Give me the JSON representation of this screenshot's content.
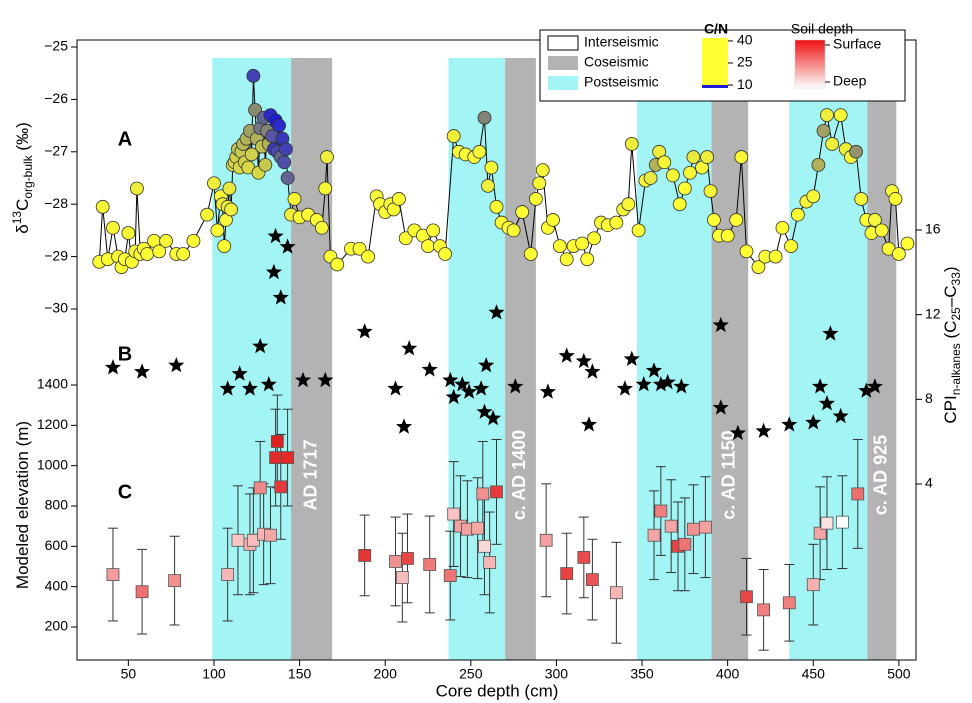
{
  "chart_data": {
    "type": "scatter",
    "xlabel": "Core depth (cm)",
    "xlim": [
      20,
      510
    ],
    "xticks": [
      50,
      100,
      150,
      200,
      250,
      300,
      350,
      400,
      450,
      500
    ],
    "periods": [
      {
        "name": "Interseismic",
        "color": "#ffffff"
      },
      {
        "name": "Coseismic",
        "color": "#b3b3b3",
        "ranges": [
          [
            145,
            169
          ],
          [
            270,
            288
          ],
          [
            390.5,
            412
          ],
          [
            481.5,
            498.5
          ]
        ],
        "labels": [
          "AD 1717",
          "c. AD 1400",
          "c. AD 1150",
          "c. AD 925"
        ]
      },
      {
        "name": "Postseismic",
        "color": "#a3f5f5",
        "ranges": [
          [
            99,
            145
          ],
          [
            237,
            270
          ],
          [
            347,
            390.5
          ],
          [
            436,
            481.5
          ]
        ]
      }
    ],
    "cn_scale": {
      "title": "C/N",
      "clim": [
        8,
        42
      ],
      "ticks": [
        10,
        25,
        40
      ],
      "colors": [
        "#ffff33",
        "#8a8a70",
        "#1c1cd8"
      ]
    },
    "depth_scale": {
      "title": "Soil depth",
      "labels": [
        "Surface",
        "Deep"
      ],
      "colors": [
        "#ee1111",
        "#ffffff"
      ]
    },
    "panels": [
      {
        "letter": "A",
        "marker": "circle",
        "ylabel": [
          {
            "text": "δ"
          },
          {
            "text": "13",
            "shift": "super"
          },
          {
            "text": "C"
          },
          {
            "text": "org-bulk",
            "shift": "sub"
          },
          {
            "text": " (‰)"
          }
        ],
        "ylim": [
          -30,
          -25
        ],
        "yticks": [
          {
            "value": -25,
            "label": "−25"
          },
          {
            "value": -26,
            "label": "−26"
          },
          {
            "value": -27,
            "label": "−27"
          },
          {
            "value": -28,
            "label": "−28"
          },
          {
            "value": -29,
            "label": "−29"
          },
          {
            "value": -30,
            "label": "−30"
          }
        ],
        "line_color": "#000000",
        "x": [
          33,
          35,
          38,
          41,
          44,
          46,
          48,
          50,
          52,
          54,
          55,
          57,
          59,
          61,
          65,
          68,
          72,
          78,
          82,
          88,
          96,
          100,
          102,
          104,
          105,
          106,
          107,
          108,
          109,
          110,
          111,
          112,
          113,
          114,
          115,
          116,
          117,
          118,
          119,
          120,
          121,
          122,
          123,
          124,
          125,
          126,
          127,
          128,
          129,
          130,
          131,
          132,
          133,
          134,
          135,
          136,
          137,
          138,
          139,
          140,
          141,
          142,
          143,
          145,
          147,
          150,
          155,
          160,
          163,
          165,
          166,
          168,
          172,
          180,
          185,
          190,
          195,
          197,
          200,
          203,
          205,
          208,
          212,
          217,
          222,
          225,
          228,
          232,
          235,
          240,
          243,
          247,
          252,
          255,
          258,
          260,
          262,
          265,
          268,
          272,
          275,
          280,
          285,
          288,
          290,
          292,
          295,
          298,
          302,
          306,
          310,
          315,
          318,
          322,
          326,
          330,
          335,
          339,
          342,
          344,
          348,
          352,
          355,
          358,
          360,
          363,
          368,
          372,
          375,
          378,
          380,
          385,
          388,
          390,
          392,
          395,
          400,
          405,
          408,
          411,
          418,
          422,
          428,
          432,
          437,
          441,
          446,
          450,
          453,
          456,
          458,
          461,
          466,
          469,
          472,
          475,
          478,
          481,
          484,
          486,
          490,
          494,
          496,
          498,
          500,
          505
        ],
        "values": [
          -29.1,
          -28.05,
          -29.05,
          -28.45,
          -29.0,
          -29.2,
          -29.05,
          -28.55,
          -29.1,
          -28.9,
          -27.7,
          -28.95,
          -28.85,
          -28.95,
          -28.7,
          -28.9,
          -28.7,
          -28.95,
          -28.95,
          -28.7,
          -28.2,
          -27.6,
          -28.5,
          -27.85,
          -28.0,
          -28.8,
          -28.3,
          -28.05,
          -27.7,
          -28.1,
          -27.25,
          -27.2,
          -27.1,
          -26.95,
          -27.3,
          -27.0,
          -26.85,
          -27.2,
          -26.75,
          -27.3,
          -26.6,
          -27.05,
          -25.55,
          -26.2,
          -26.75,
          -27.4,
          -26.55,
          -26.9,
          -26.35,
          -27.25,
          -26.6,
          -26.85,
          -26.3,
          -26.7,
          -26.95,
          -26.4,
          -27.0,
          -26.5,
          -27.1,
          -26.75,
          -27.2,
          -26.95,
          -27.5,
          -28.2,
          -27.9,
          -28.25,
          -28.2,
          -28.3,
          -28.45,
          -27.7,
          -27.1,
          -29.0,
          -29.15,
          -28.85,
          -28.85,
          -29.0,
          -27.85,
          -28.0,
          -28.15,
          -28.0,
          -28.1,
          -27.9,
          -28.65,
          -28.5,
          -28.6,
          -28.8,
          -28.5,
          -28.8,
          -28.95,
          -26.7,
          -27.0,
          -27.05,
          -27.1,
          -27.0,
          -26.35,
          -27.65,
          -27.3,
          -28.05,
          -28.35,
          -28.45,
          -28.5,
          -28.15,
          -28.95,
          -27.9,
          -27.6,
          -27.35,
          -28.45,
          -28.3,
          -28.8,
          -29.05,
          -28.8,
          -28.75,
          -29.05,
          -28.65,
          -28.35,
          -28.4,
          -28.35,
          -28.1,
          -28.0,
          -26.85,
          -28.5,
          -27.55,
          -27.5,
          -27.25,
          -27.0,
          -27.2,
          -27.45,
          -28.0,
          -27.7,
          -27.4,
          -27.1,
          -27.3,
          -27.1,
          -27.75,
          -28.3,
          -28.6,
          -28.6,
          -28.3,
          -27.1,
          -28.9,
          -29.2,
          -29.0,
          -29.0,
          -28.45,
          -28.8,
          -28.2,
          -27.95,
          -27.85,
          -27.25,
          -26.6,
          -26.3,
          -26.85,
          -26.3,
          -26.95,
          -27.1,
          -27.0,
          -27.9,
          -28.3,
          -28.55,
          -28.3,
          -28.5,
          -28.85,
          -27.75,
          -27.9,
          -28.95,
          -28.75
        ],
        "cn": [
          10,
          11,
          10,
          11,
          10,
          10,
          10,
          10,
          10,
          11,
          12,
          10,
          10,
          10,
          10,
          10,
          11,
          10,
          10,
          10,
          11,
          12,
          10,
          11,
          12,
          10,
          11,
          12,
          13,
          12,
          14,
          15,
          16,
          18,
          15,
          17,
          19,
          16,
          20,
          15,
          22,
          16,
          35,
          25,
          20,
          15,
          28,
          18,
          30,
          17,
          26,
          20,
          38,
          32,
          36,
          40,
          34,
          38,
          30,
          36,
          33,
          35,
          30,
          12,
          11,
          10,
          10,
          10,
          11,
          11,
          12,
          10,
          10,
          10,
          10,
          10,
          11,
          10,
          10,
          11,
          10,
          10,
          10,
          10,
          10,
          10,
          10,
          10,
          10,
          12,
          11,
          10,
          11,
          11,
          26,
          12,
          11,
          10,
          10,
          10,
          10,
          10,
          10,
          10,
          11,
          11,
          10,
          10,
          10,
          10,
          10,
          10,
          10,
          10,
          10,
          10,
          10,
          11,
          11,
          12,
          10,
          11,
          13,
          20,
          12,
          11,
          11,
          10,
          10,
          11,
          13,
          11,
          12,
          11,
          10,
          10,
          10,
          10,
          11,
          10,
          10,
          10,
          10,
          10,
          10,
          10,
          11,
          11,
          20,
          22,
          12,
          12,
          11,
          12,
          11,
          24,
          11,
          10,
          10,
          11,
          10,
          10,
          11,
          10,
          10,
          10
        ]
      },
      {
        "letter": "B",
        "marker": "star",
        "axis": "y2",
        "color": "#000000",
        "ylabel": [
          {
            "text": "CPI"
          },
          {
            "text": "n-alkanes",
            "shift": "sub"
          },
          {
            "text": " (C"
          },
          {
            "text": "25",
            "shift": "sub"
          },
          {
            "text": "–C"
          },
          {
            "text": "33",
            "shift": "sub"
          },
          {
            "text": ")"
          }
        ],
        "ylim": [
          4,
          16
        ],
        "yticks": [
          4,
          8,
          12,
          16
        ],
        "x": [
          41,
          58,
          78,
          108,
          115,
          121,
          127,
          132,
          135,
          136,
          139,
          143,
          152,
          165,
          188,
          206,
          211,
          214,
          226,
          238,
          240,
          245,
          249,
          256,
          258,
          259,
          263,
          265,
          276,
          295,
          306,
          316,
          319,
          321,
          340,
          344,
          351,
          357,
          361,
          365,
          373,
          396,
          396,
          406,
          421,
          436,
          450,
          454,
          458,
          460,
          466,
          481,
          486
        ],
        "values": [
          9.5,
          9.3,
          9.6,
          8.5,
          9.2,
          8.5,
          10.5,
          8.7,
          14,
          15.7,
          12.8,
          15.2,
          8.9,
          8.9,
          11.2,
          8.5,
          6.7,
          10.4,
          9.4,
          8.9,
          8.1,
          8.7,
          8.35,
          8.5,
          7.4,
          9.6,
          7.1,
          12.1,
          8.6,
          8.35,
          10.05,
          9.8,
          6.8,
          9.3,
          8.5,
          9.9,
          8.7,
          9.35,
          8.7,
          8.8,
          8.6,
          11.5,
          7.6,
          6.4,
          6.5,
          6.8,
          6.9,
          8.6,
          7.8,
          11.1,
          7.2,
          8.4,
          8.6
        ]
      },
      {
        "letter": "C",
        "marker": "square",
        "ylabel": [
          {
            "text": "Modeled elevation (m)"
          }
        ],
        "ylim": [
          200,
          1400
        ],
        "yticks": [
          200,
          400,
          600,
          800,
          1000,
          1200,
          1400
        ],
        "x": [
          41,
          58,
          77,
          108,
          114,
          121,
          123,
          127,
          129,
          133,
          136,
          137,
          139,
          143,
          188,
          206,
          210,
          213,
          226,
          238,
          240,
          244,
          248,
          254,
          257,
          258,
          261,
          265,
          294,
          306,
          316,
          321,
          335,
          357,
          361,
          367,
          371,
          375,
          380,
          387,
          411,
          421,
          436,
          450,
          454,
          458,
          467,
          476
        ],
        "values": [
          460,
          375,
          430,
          460,
          630,
          610,
          630,
          890,
          660,
          655,
          1040,
          1120,
          895,
          1040,
          555,
          525,
          445,
          540,
          510,
          455,
          760,
          700,
          685,
          690,
          860,
          600,
          520,
          870,
          630,
          465,
          545,
          435,
          370,
          655,
          775,
          700,
          600,
          610,
          685,
          695,
          350,
          285,
          320,
          410,
          665,
          715,
          720,
          860
        ],
        "errors": [
          230,
          210,
          220,
          230,
          270,
          250,
          260,
          230,
          250,
          240,
          240,
          230,
          260,
          240,
          200,
          220,
          220,
          220,
          240,
          220,
          260,
          250,
          240,
          250,
          260,
          240,
          250,
          260,
          280,
          200,
          200,
          200,
          250,
          220,
          220,
          230,
          220,
          230,
          220,
          250,
          190,
          200,
          190,
          200,
          230,
          230,
          230,
          270
        ],
        "colors": [
          "#f59b9b",
          "#ef7070",
          "#f29090",
          "#f7b5b5",
          "#f9c5c5",
          "#f6b0b0",
          "#f7bcbc",
          "#f08a8a",
          "#f7b5b5",
          "#f5a5a5",
          "#e52a2a",
          "#e01f1f",
          "#e83a3a",
          "#e52a2a",
          "#e53535",
          "#f29090",
          "#f7bcbc",
          "#e84545",
          "#ef7a7a",
          "#ef7575",
          "#f9c3c3",
          "#f4a0a0",
          "#f3a0a0",
          "#f5a8a8",
          "#f29090",
          "#fbd8d8",
          "#f7b5b5",
          "#e83a3a",
          "#f5a0a0",
          "#e94040",
          "#ea4a4a",
          "#ec5555",
          "#f7b5b5",
          "#f5a5a5",
          "#f08080",
          "#f5a5a5",
          "#e84545",
          "#ef7575",
          "#f29090",
          "#f4a0a0",
          "#e84545",
          "#f08080",
          "#f08080",
          "#f7b0b0",
          "#f5a5a5",
          "#fde0e0",
          "#ffffff",
          "#ef6f6f"
        ]
      }
    ]
  }
}
